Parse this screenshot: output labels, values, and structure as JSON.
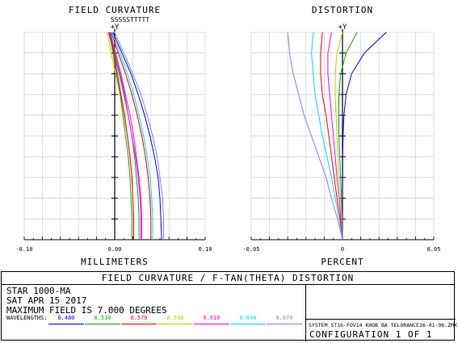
{
  "colors": {
    "frame": "#000000",
    "grid": "#c8c8c8",
    "series": [
      "#0000ff",
      "#00b000",
      "#ff0000",
      "#c8c800",
      "#ff00ff",
      "#00e0e0",
      "#8080ff"
    ]
  },
  "chart_data": [
    {
      "type": "line",
      "title": "FIELD CURVATURE",
      "legend_text": "SSSSSTTTTT",
      "axis_marker": "+Y",
      "xlabel": "MILLIMETERS",
      "ylabel": "",
      "xlim": [
        -0.1,
        0.1
      ],
      "ylim": [
        0,
        7.0
      ],
      "x_ticks": [
        "-0.10",
        "0.00",
        "0.10"
      ],
      "grid": true,
      "series": [
        {
          "color": "#0000ff",
          "x": [
            -0.002,
            0.008,
            0.018,
            0.026,
            0.033,
            0.039,
            0.044,
            0.048,
            0.05,
            0.051,
            0.052
          ],
          "y": [
            7.0,
            6.3,
            5.6,
            4.9,
            4.2,
            3.5,
            2.8,
            2.1,
            1.4,
            0.7,
            0.0
          ]
        },
        {
          "color": "#00b000",
          "x": [
            -0.006,
            0.0,
            0.006,
            0.011,
            0.015,
            0.019,
            0.022,
            0.024,
            0.026,
            0.027,
            0.027
          ],
          "y": [
            7.0,
            6.3,
            5.6,
            4.9,
            4.2,
            3.5,
            2.8,
            2.1,
            1.4,
            0.7,
            0.0
          ]
        },
        {
          "color": "#ff0000",
          "x": [
            -0.004,
            0.004,
            0.012,
            0.019,
            0.025,
            0.03,
            0.034,
            0.037,
            0.039,
            0.04,
            0.04
          ],
          "y": [
            7.0,
            6.3,
            5.6,
            4.9,
            4.2,
            3.5,
            2.8,
            2.1,
            1.4,
            0.7,
            0.0
          ]
        },
        {
          "color": "#c8c800",
          "x": [
            -0.008,
            -0.004,
            0.001,
            0.006,
            0.01,
            0.014,
            0.017,
            0.019,
            0.02,
            0.021,
            0.021
          ],
          "y": [
            7.0,
            6.3,
            5.6,
            4.9,
            4.2,
            3.5,
            2.8,
            2.1,
            1.4,
            0.7,
            0.0
          ]
        },
        {
          "color": "#ff00ff",
          "x": [
            -0.007,
            -0.001,
            0.005,
            0.01,
            0.015,
            0.019,
            0.023,
            0.026,
            0.028,
            0.029,
            0.029
          ],
          "y": [
            7.0,
            6.3,
            5.6,
            4.9,
            4.2,
            3.5,
            2.8,
            2.1,
            1.4,
            0.7,
            0.0
          ]
        },
        {
          "color": "#00e0e0",
          "x": [
            -0.003,
            0.006,
            0.014,
            0.021,
            0.027,
            0.032,
            0.036,
            0.039,
            0.041,
            0.042,
            0.042
          ],
          "y": [
            7.0,
            6.3,
            5.6,
            4.9,
            4.2,
            3.5,
            2.8,
            2.1,
            1.4,
            0.7,
            0.0
          ]
        },
        {
          "color": "#8080ff",
          "x": [
            0.0,
            0.01,
            0.02,
            0.029,
            0.036,
            0.042,
            0.047,
            0.05,
            0.053,
            0.054,
            0.054
          ],
          "y": [
            7.0,
            6.3,
            5.6,
            4.9,
            4.2,
            3.5,
            2.8,
            2.1,
            1.4,
            0.7,
            0.0
          ]
        },
        {
          "color": "#ff0000",
          "x": [
            -0.005,
            -0.001,
            0.003,
            0.007,
            0.011,
            0.014,
            0.017,
            0.019,
            0.02,
            0.021,
            0.021
          ],
          "y": [
            7.0,
            6.3,
            5.6,
            4.9,
            4.2,
            3.5,
            2.8,
            2.1,
            1.4,
            0.7,
            0.0
          ]
        },
        {
          "color": "#00b000",
          "x": [
            -0.006,
            -0.002,
            0.002,
            0.006,
            0.009,
            0.012,
            0.015,
            0.017,
            0.018,
            0.019,
            0.019
          ],
          "y": [
            7.0,
            6.3,
            5.6,
            4.9,
            4.2,
            3.5,
            2.8,
            2.1,
            1.4,
            0.7,
            0.0
          ]
        },
        {
          "color": "#ff00ff",
          "x": [
            -0.005,
            0.001,
            0.007,
            0.012,
            0.017,
            0.021,
            0.024,
            0.027,
            0.029,
            0.03,
            0.03
          ],
          "y": [
            7.0,
            6.3,
            5.6,
            4.9,
            4.2,
            3.5,
            2.8,
            2.1,
            1.4,
            0.7,
            0.0
          ]
        }
      ]
    },
    {
      "type": "line",
      "title": "DISTORTION",
      "axis_marker": "+Y",
      "xlabel": "PERCENT",
      "ylabel": "",
      "xlim": [
        -0.05,
        0.05
      ],
      "ylim": [
        0,
        7.0
      ],
      "x_ticks": [
        "-0.05",
        "0",
        "0.05"
      ],
      "grid": true,
      "series": [
        {
          "color": "#0000ff",
          "x": [
            0.024,
            0.012,
            0.005,
            0.002,
            0.0008,
            0.0003,
            0.0001,
            5e-05,
            0.0,
            0.0,
            0.0
          ],
          "y": [
            7.0,
            6.3,
            5.6,
            4.9,
            4.2,
            3.5,
            2.8,
            2.1,
            1.4,
            0.7,
            0.0
          ]
        },
        {
          "color": "#00b000",
          "x": [
            0.008,
            0.002,
            -0.001,
            -0.002,
            -0.002,
            -0.002,
            -0.0015,
            -0.001,
            -0.0005,
            -0.0002,
            0.0
          ],
          "y": [
            7.0,
            6.3,
            5.6,
            4.9,
            4.2,
            3.5,
            2.8,
            2.1,
            1.4,
            0.7,
            0.0
          ]
        },
        {
          "color": "#c8c800",
          "x": [
            0.0,
            -0.003,
            -0.004,
            -0.004,
            -0.0035,
            -0.003,
            -0.0025,
            -0.002,
            -0.001,
            -0.0004,
            0.0
          ],
          "y": [
            7.0,
            6.3,
            5.6,
            4.9,
            4.2,
            3.5,
            2.8,
            2.1,
            1.4,
            0.7,
            0.0
          ]
        },
        {
          "color": "#ff00ff",
          "x": [
            -0.006,
            -0.008,
            -0.008,
            -0.007,
            -0.006,
            -0.005,
            -0.004,
            -0.003,
            -0.0018,
            -0.0008,
            0.0
          ],
          "y": [
            7.0,
            6.3,
            5.6,
            4.9,
            4.2,
            3.5,
            2.8,
            2.1,
            1.4,
            0.7,
            0.0
          ]
        },
        {
          "color": "#ff0000",
          "x": [
            -0.011,
            -0.012,
            -0.012,
            -0.011,
            -0.009,
            -0.0075,
            -0.006,
            -0.0045,
            -0.003,
            -0.0013,
            0.0
          ],
          "y": [
            7.0,
            6.3,
            5.6,
            4.9,
            4.2,
            3.5,
            2.8,
            2.1,
            1.4,
            0.7,
            0.0
          ]
        },
        {
          "color": "#00e0e0",
          "x": [
            -0.016,
            -0.017,
            -0.016,
            -0.015,
            -0.013,
            -0.011,
            -0.0085,
            -0.006,
            -0.004,
            -0.0018,
            0.0
          ],
          "y": [
            7.0,
            6.3,
            5.6,
            4.9,
            4.2,
            3.5,
            2.8,
            2.1,
            1.4,
            0.7,
            0.0
          ]
        },
        {
          "color": "#8080ff",
          "x": [
            -0.03,
            -0.029,
            -0.027,
            -0.024,
            -0.021,
            -0.017,
            -0.013,
            -0.009,
            -0.006,
            -0.0027,
            0.0
          ],
          "y": [
            7.0,
            6.3,
            5.6,
            4.9,
            4.2,
            3.5,
            2.8,
            2.1,
            1.4,
            0.7,
            0.0
          ]
        }
      ]
    }
  ],
  "footer": {
    "banner": "FIELD CURVATURE / F-TAN(THETA) DISTORTION",
    "lines": [
      "STAR 1000-MA",
      "SAT APR 15 2017",
      "MAXIMUM FIELD IS 7.000 DEGREES"
    ],
    "wavelengths_label": "WAVELENGTHS:",
    "wavelengths": [
      {
        "value": "0.480",
        "color": "#0000ff"
      },
      {
        "value": "0.530",
        "color": "#00b000"
      },
      {
        "value": "0.570",
        "color": "#ff0000"
      },
      {
        "value": "0.590",
        "color": "#c8c800"
      },
      {
        "value": "0.610",
        "color": "#ff00ff"
      },
      {
        "value": "0.640",
        "color": "#00e0e0"
      },
      {
        "value": "0.670",
        "color": "#8080ff"
      }
    ],
    "system": "SYSTEM ST16-FOV14 KHOB BA TELORANCE26-01-96.ZMX",
    "configuration": "CONFIGURATION 1 OF 1"
  }
}
